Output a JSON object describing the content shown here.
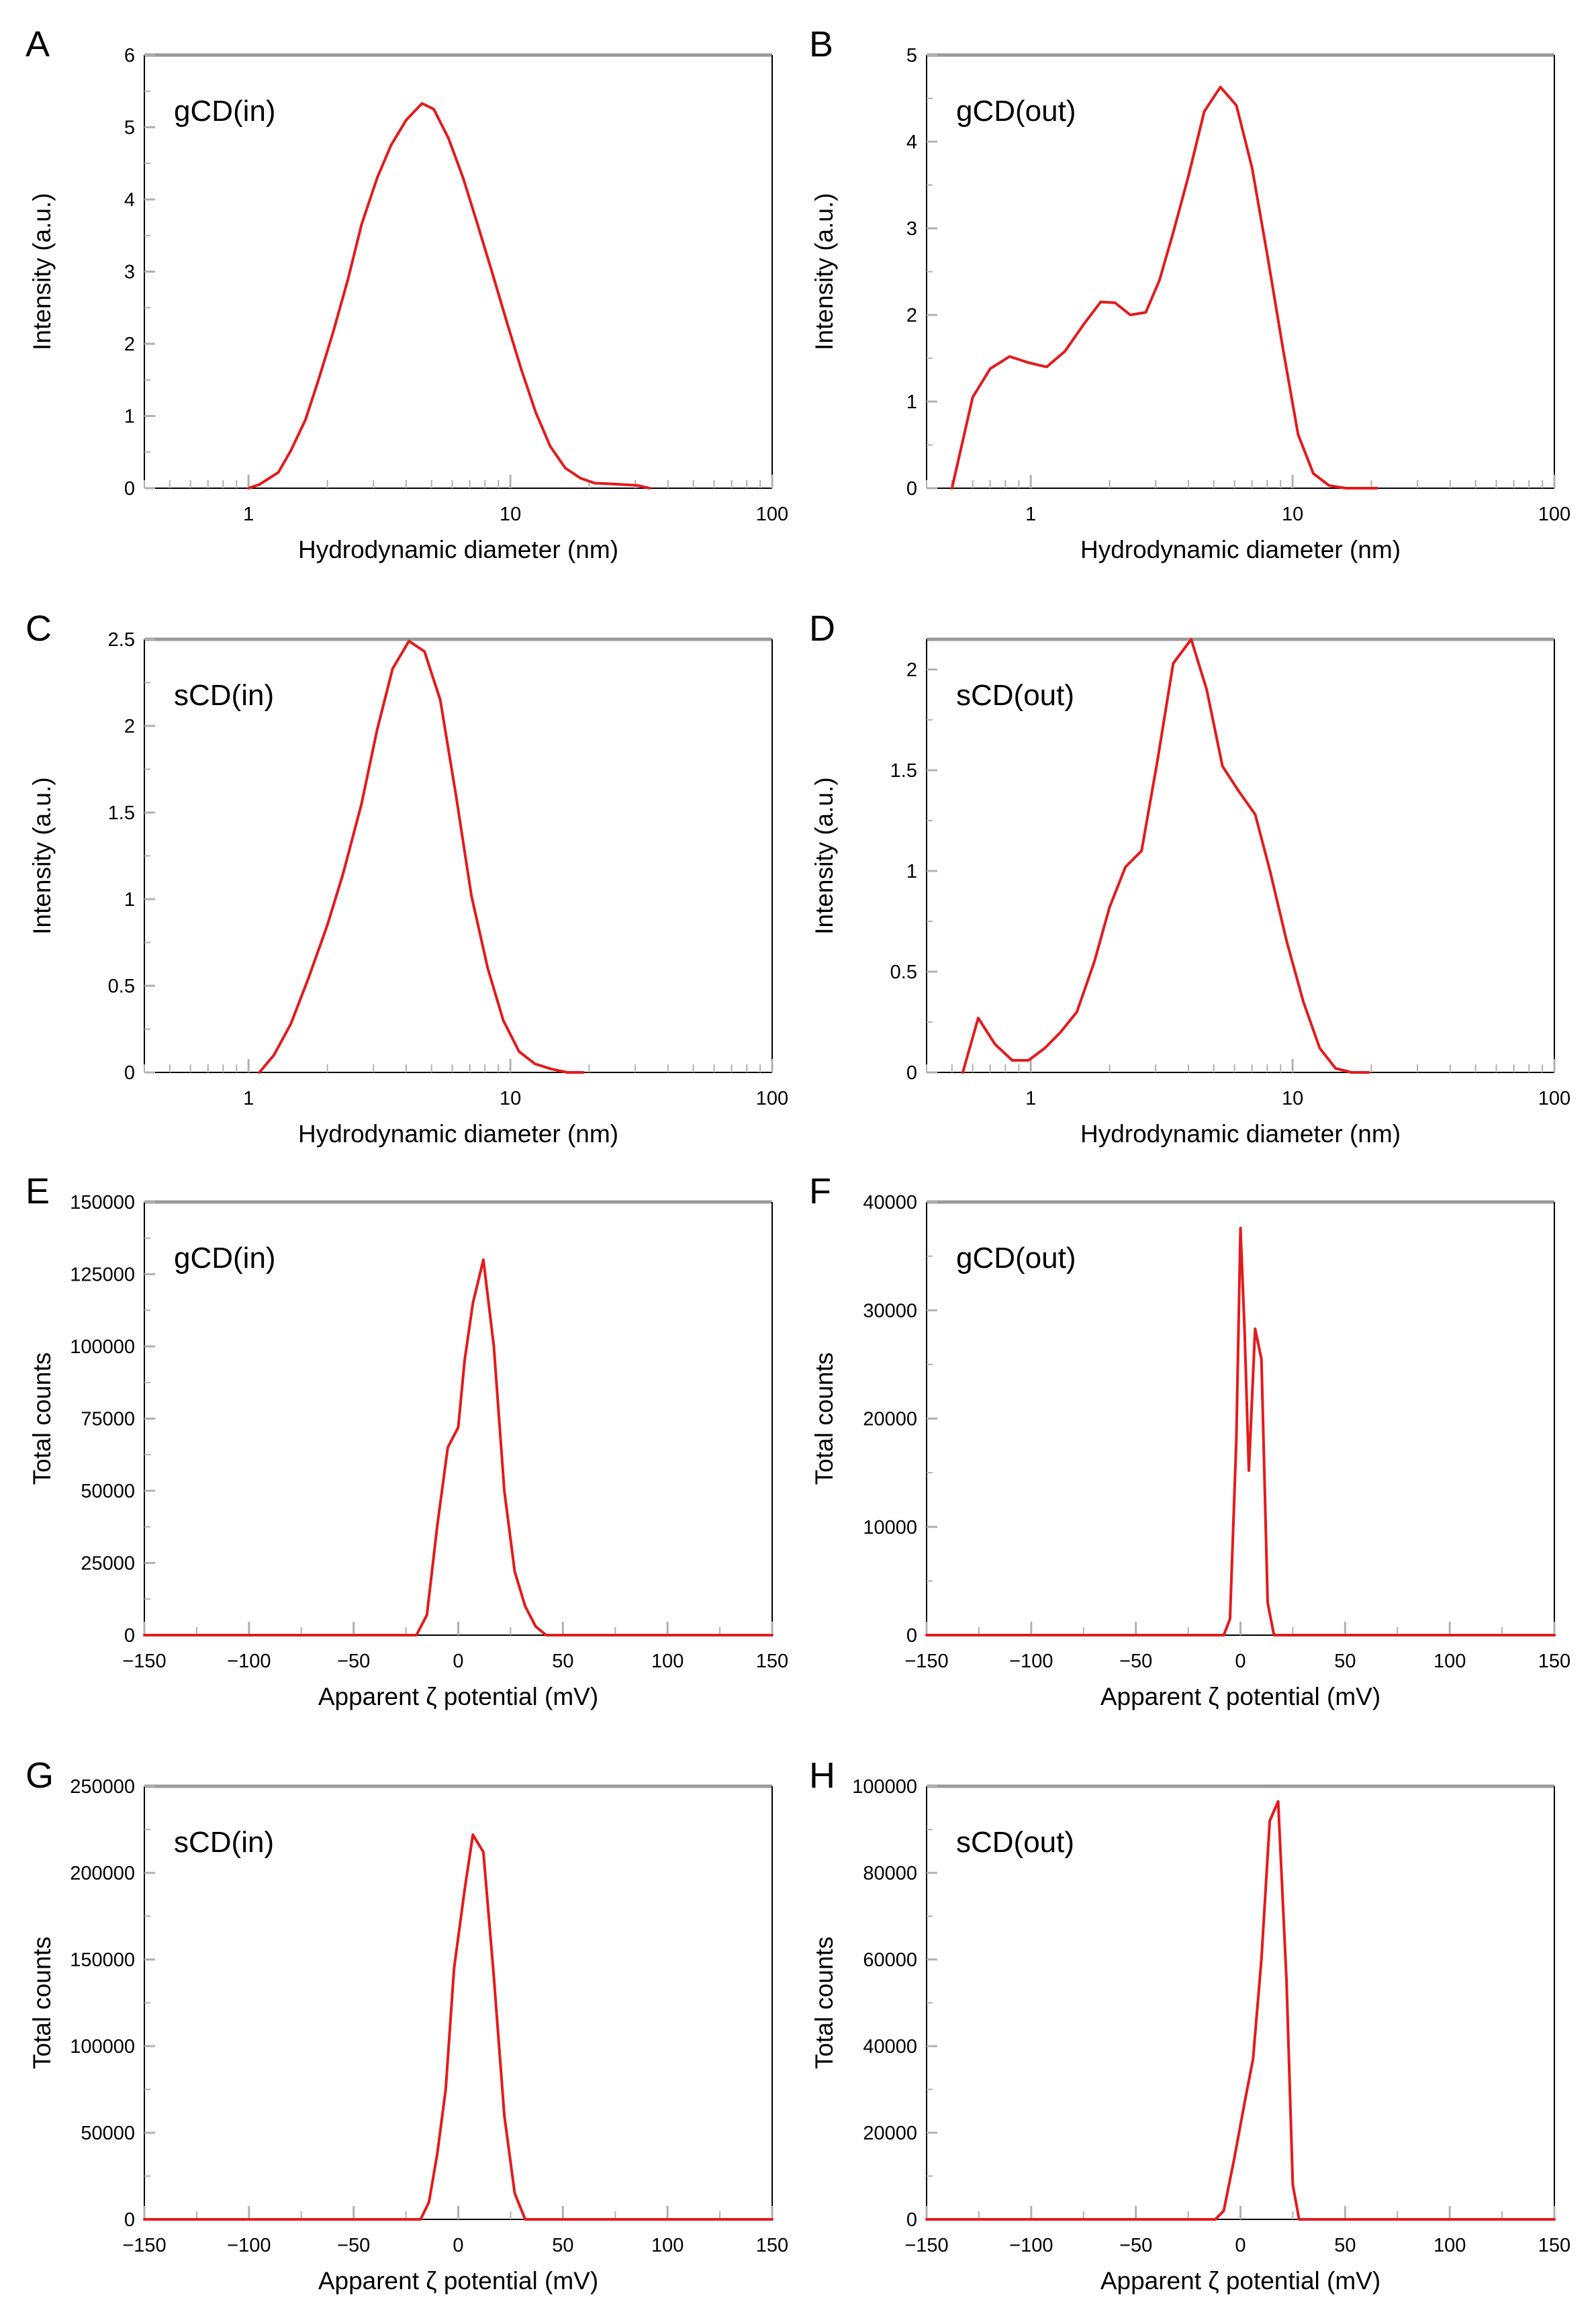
{
  "colors": {
    "line": "#e41a1c",
    "axis": "#000000",
    "frame": "#9a9a9a",
    "minor_tick": "#b0b0b0"
  },
  "chart_data": [
    {
      "panel": "A",
      "type": "line",
      "label": "gCD(in)",
      "xscale": "log",
      "xlim": [
        0.4,
        100
      ],
      "xticks": [
        1,
        10,
        100
      ],
      "xtick_labels": [
        "1",
        "10",
        "100"
      ],
      "xlabel": "Hydrodynamic diameter (nm)",
      "ylim": [
        0,
        6
      ],
      "yticks": [
        0,
        1,
        2,
        3,
        4,
        5,
        6
      ],
      "ytick_labels": [
        "0",
        "1",
        "2",
        "3",
        "4",
        "5",
        "6"
      ],
      "ylabel": "Intensity (a.u.)",
      "x": [
        1.0,
        1.1,
        1.3,
        1.45,
        1.65,
        1.85,
        2.1,
        2.4,
        2.7,
        3.1,
        3.5,
        4.0,
        4.6,
        5.1,
        5.8,
        6.6,
        7.5,
        8.5,
        9.7,
        11,
        12.5,
        14.2,
        16.2,
        18.5,
        21,
        24,
        27,
        30.5,
        34
      ],
      "y": [
        0,
        0.05,
        0.22,
        0.52,
        0.95,
        1.5,
        2.15,
        2.9,
        3.65,
        4.3,
        4.75,
        5.1,
        5.33,
        5.25,
        4.85,
        4.3,
        3.65,
        3.0,
        2.3,
        1.65,
        1.05,
        0.58,
        0.28,
        0.14,
        0.07,
        0.06,
        0.05,
        0.04,
        0.0
      ]
    },
    {
      "panel": "B",
      "type": "line",
      "label": "gCD(out)",
      "xscale": "log",
      "xlim": [
        0.4,
        100
      ],
      "xticks": [
        1,
        10,
        100
      ],
      "xtick_labels": [
        "1",
        "10",
        "100"
      ],
      "xlabel": "Hydrodynamic diameter (nm)",
      "ylim": [
        0,
        5
      ],
      "yticks": [
        0,
        1,
        2,
        3,
        4,
        5
      ],
      "ytick_labels": [
        "0",
        "1",
        "2",
        "3",
        "4",
        "5"
      ],
      "ylabel": "Intensity (a.u.)",
      "x": [
        0.5,
        0.6,
        0.7,
        0.83,
        0.98,
        1.15,
        1.35,
        1.6,
        1.85,
        2.1,
        2.4,
        2.75,
        3.1,
        3.5,
        4.0,
        4.6,
        5.3,
        6.1,
        7.0,
        8.0,
        9.2,
        10.5,
        12,
        13.8,
        16,
        18.5,
        21
      ],
      "y": [
        0,
        1.05,
        1.38,
        1.52,
        1.45,
        1.4,
        1.58,
        1.9,
        2.15,
        2.14,
        2.0,
        2.03,
        2.4,
        2.95,
        3.6,
        4.35,
        4.63,
        4.42,
        3.7,
        2.7,
        1.6,
        0.62,
        0.17,
        0.03,
        0.0,
        0.0,
        0.0
      ]
    },
    {
      "panel": "C",
      "type": "line",
      "label": "sCD(in)",
      "xscale": "log",
      "xlim": [
        0.4,
        100
      ],
      "xticks": [
        1,
        10,
        100
      ],
      "xtick_labels": [
        "1",
        "10",
        "100"
      ],
      "xlabel": "Hydrodynamic diameter (nm)",
      "ylim": [
        0,
        2.5
      ],
      "yticks": [
        0,
        0.5,
        1,
        1.5,
        2,
        2.5
      ],
      "ytick_labels": [
        "0",
        "0.5",
        "1",
        "1.5",
        "2",
        "2.5"
      ],
      "ylabel": "Intensity (a.u.)",
      "x": [
        1.1,
        1.25,
        1.45,
        1.7,
        2.0,
        2.3,
        2.7,
        3.1,
        3.55,
        4.1,
        4.7,
        5.4,
        6.2,
        7.1,
        8.2,
        9.4,
        10.8,
        12.4,
        14.3,
        16.5,
        19
      ],
      "y": [
        0,
        0.1,
        0.28,
        0.55,
        0.85,
        1.15,
        1.55,
        1.98,
        2.33,
        2.49,
        2.43,
        2.15,
        1.6,
        1.02,
        0.6,
        0.3,
        0.12,
        0.05,
        0.02,
        0.0,
        0.0
      ]
    },
    {
      "panel": "D",
      "type": "line",
      "label": "sCD(out)",
      "xscale": "log",
      "xlim": [
        0.4,
        100
      ],
      "xticks": [
        1,
        10,
        100
      ],
      "xtick_labels": [
        "1",
        "10",
        "100"
      ],
      "xlabel": "Hydrodynamic diameter (nm)",
      "ylim": [
        0,
        2.15
      ],
      "yticks": [
        0,
        0.5,
        1,
        1.5,
        2
      ],
      "ytick_labels": [
        "0",
        "0.5",
        "1",
        "1.5",
        "2"
      ],
      "ylabel": "Intensity (a.u.)",
      "x": [
        0.55,
        0.63,
        0.73,
        0.85,
        0.98,
        1.13,
        1.3,
        1.5,
        1.75,
        2.0,
        2.3,
        2.65,
        3.05,
        3.5,
        4.1,
        4.7,
        5.4,
        6.2,
        7.2,
        8.2,
        9.5,
        11,
        12.7,
        14.6,
        16.8,
        19.5
      ],
      "y": [
        0,
        0.27,
        0.14,
        0.06,
        0.06,
        0.12,
        0.2,
        0.3,
        0.55,
        0.82,
        1.02,
        1.1,
        1.55,
        2.03,
        2.15,
        1.9,
        1.52,
        1.4,
        1.28,
        1.0,
        0.65,
        0.35,
        0.12,
        0.02,
        0.0,
        0.0
      ]
    },
    {
      "panel": "E",
      "type": "line",
      "label": "gCD(in)",
      "xscale": "linear",
      "xlim": [
        -150,
        150
      ],
      "xticks": [
        -150,
        -100,
        -50,
        0,
        50,
        100,
        150
      ],
      "xtick_labels": [
        "−150",
        "−100",
        "−50",
        "0",
        "50",
        "100",
        "150"
      ],
      "xlabel": "Apparent ζ potential (mV)",
      "ylim": [
        0,
        150000
      ],
      "yticks": [
        0,
        25000,
        50000,
        75000,
        100000,
        125000,
        150000
      ],
      "ytick_labels": [
        "0",
        "25000",
        "50000",
        "75000",
        "100000",
        "125000",
        "150000"
      ],
      "ylabel": "Total counts",
      "x": [
        -150,
        -20,
        -15,
        -10,
        -5,
        0,
        3,
        7,
        12,
        17,
        22,
        27,
        32,
        37,
        42,
        150
      ],
      "y": [
        0,
        0,
        7000,
        38000,
        65000,
        72000,
        95000,
        115000,
        130000,
        100000,
        50000,
        22000,
        10000,
        3000,
        0,
        0
      ]
    },
    {
      "panel": "F",
      "type": "line",
      "label": "gCD(out)",
      "xscale": "linear",
      "xlim": [
        -150,
        150
      ],
      "xticks": [
        -150,
        -100,
        -50,
        0,
        50,
        100,
        150
      ],
      "xtick_labels": [
        "−150",
        "−100",
        "−50",
        "0",
        "50",
        "100",
        "150"
      ],
      "xlabel": "Apparent ζ potential (mV)",
      "ylim": [
        0,
        40000
      ],
      "yticks": [
        0,
        10000,
        20000,
        30000,
        40000
      ],
      "ytick_labels": [
        "0",
        "10000",
        "20000",
        "30000",
        "40000"
      ],
      "ylabel": "Total counts",
      "x": [
        -150,
        -8,
        -5,
        -2,
        0,
        2,
        4,
        7,
        10,
        13,
        16,
        18,
        150
      ],
      "y": [
        0,
        0,
        1500,
        18000,
        37600,
        28000,
        15200,
        28300,
        25500,
        3000,
        0,
        0,
        0
      ]
    },
    {
      "panel": "G",
      "type": "line",
      "label": "sCD(in)",
      "xscale": "linear",
      "xlim": [
        -150,
        150
      ],
      "xticks": [
        -150,
        -100,
        -50,
        0,
        50,
        100,
        150
      ],
      "xtick_labels": [
        "−150",
        "−100",
        "−50",
        "0",
        "50",
        "100",
        "150"
      ],
      "xlabel": "Apparent ζ potential (mV)",
      "ylim": [
        0,
        250000
      ],
      "yticks": [
        0,
        50000,
        100000,
        150000,
        200000,
        250000
      ],
      "ytick_labels": [
        "0",
        "50000",
        "100000",
        "150000",
        "200000",
        "250000"
      ],
      "ylabel": "Total counts",
      "x": [
        -150,
        -18,
        -14,
        -10,
        -6,
        -2,
        3,
        7,
        12,
        17,
        22,
        27,
        32,
        150
      ],
      "y": [
        0,
        0,
        10000,
        38000,
        75000,
        145000,
        190000,
        222000,
        212000,
        140000,
        60000,
        15000,
        0,
        0
      ]
    },
    {
      "panel": "H",
      "type": "line",
      "label": "sCD(out)",
      "xscale": "linear",
      "xlim": [
        -150,
        150
      ],
      "xticks": [
        -150,
        -100,
        -50,
        0,
        50,
        100,
        150
      ],
      "xtick_labels": [
        "−150",
        "−100",
        "−50",
        "0",
        "50",
        "100",
        "150"
      ],
      "xlabel": "Apparent ζ potential (mV)",
      "ylim": [
        0,
        100000
      ],
      "yticks": [
        0,
        20000,
        40000,
        60000,
        80000,
        100000
      ],
      "ytick_labels": [
        "0",
        "20000",
        "40000",
        "60000",
        "80000",
        "100000"
      ],
      "ylabel": "Total counts",
      "x": [
        -150,
        -12,
        -8,
        -3,
        2,
        6,
        10,
        14,
        18,
        22,
        25,
        28,
        150
      ],
      "y": [
        0,
        0,
        2000,
        14000,
        27000,
        37000,
        60000,
        92000,
        96500,
        55000,
        8000,
        0,
        0
      ]
    }
  ]
}
